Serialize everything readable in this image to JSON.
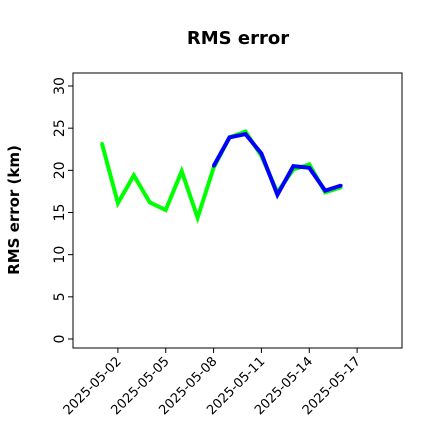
{
  "chart_data": {
    "type": "line",
    "title": "RMS error",
    "xlabel": "",
    "ylabel": "RMS error (km)",
    "ylim": [
      0,
      30
    ],
    "xlim": [
      "2025-04-30",
      "2025-05-19"
    ],
    "yticks": [
      0,
      5,
      10,
      15,
      20,
      25,
      30
    ],
    "xticks": [
      "2025-05-02",
      "2025-05-05",
      "2025-05-08",
      "2025-05-11",
      "2025-05-14",
      "2025-05-17"
    ],
    "highlighted_xtick": "2025-05-08",
    "highlight_color": "#228B22",
    "grid": false,
    "series": [
      {
        "color": "#00ff00",
        "x": [
          "2025-05-01",
          "2025-05-02",
          "2025-05-03",
          "2025-05-04",
          "2025-05-05",
          "2025-05-06",
          "2025-05-07",
          "2025-05-08",
          "2025-05-09",
          "2025-05-10",
          "2025-05-11",
          "2025-05-12",
          "2025-05-13",
          "2025-05-14",
          "2025-05-15",
          "2025-05-16"
        ],
        "y": [
          23.2,
          16.1,
          19.4,
          16.2,
          15.3,
          19.9,
          14.4,
          20.3,
          23.9,
          24.6,
          21.7,
          17.4,
          20.1,
          20.7,
          17.4,
          18.0
        ]
      },
      {
        "color": "#0000ff",
        "x": [
          "2025-05-08",
          "2025-05-09",
          "2025-05-10",
          "2025-05-11",
          "2025-05-12",
          "2025-05-13",
          "2025-05-14",
          "2025-05-15",
          "2025-05-16"
        ],
        "y": [
          20.5,
          23.9,
          24.3,
          22.0,
          17.1,
          20.5,
          20.3,
          17.6,
          18.2
        ]
      }
    ]
  }
}
